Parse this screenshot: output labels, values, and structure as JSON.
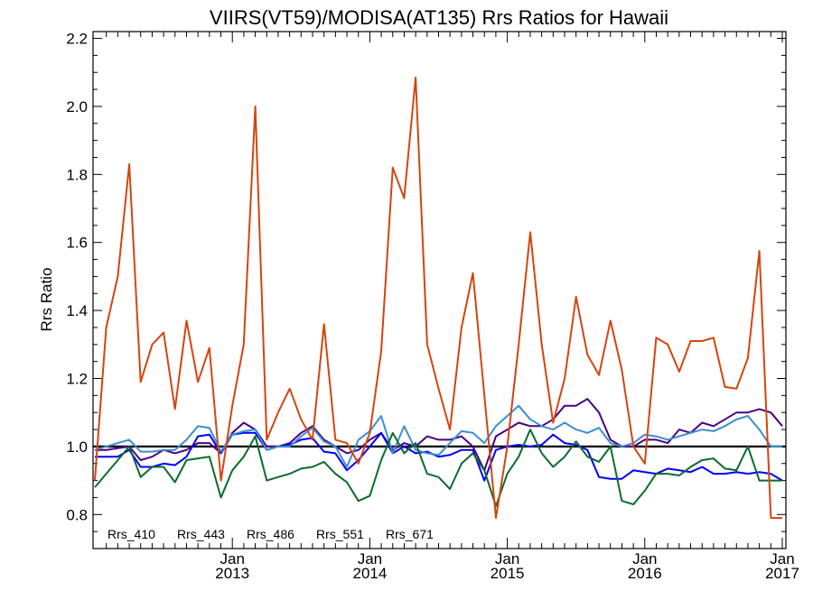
{
  "chart_data": {
    "type": "line",
    "title": "VIIRS(VT59)/MODISA(AT135)  Rrs Ratios for Hawaii",
    "xlabel": "",
    "ylabel": "Rrs Ratio",
    "xlim": [
      2012.0,
      2017.0
    ],
    "ylim": [
      0.7,
      2.22
    ],
    "yticks": [
      0.8,
      1.0,
      1.2,
      1.4,
      1.6,
      1.8,
      2.0,
      2.2
    ],
    "ytick_labels": [
      "0.8",
      "1.0",
      "1.2",
      "1.4",
      "1.6",
      "1.8",
      "2.0",
      "2.2"
    ],
    "xticks": [
      {
        "x": 2013,
        "month": "Jan",
        "year": "2013"
      },
      {
        "x": 2014,
        "month": "Jan",
        "year": "2014"
      },
      {
        "x": 2015,
        "month": "Jan",
        "year": "2015"
      },
      {
        "x": 2016,
        "month": "Jan",
        "year": "2016"
      },
      {
        "x": 2017,
        "month": "Jan",
        "year": "2017"
      }
    ],
    "reference_line": 1.0,
    "legend_placement": "bottom-left",
    "x": [
      2012.0,
      2012.083,
      2012.167,
      2012.25,
      2012.333,
      2012.417,
      2012.5,
      2012.583,
      2012.667,
      2012.75,
      2012.833,
      2012.917,
      2013.0,
      2013.083,
      2013.167,
      2013.25,
      2013.333,
      2013.417,
      2013.5,
      2013.583,
      2013.667,
      2013.75,
      2013.833,
      2013.917,
      2014.0,
      2014.083,
      2014.167,
      2014.25,
      2014.333,
      2014.417,
      2014.5,
      2014.583,
      2014.667,
      2014.75,
      2014.833,
      2014.917,
      2015.0,
      2015.083,
      2015.167,
      2015.25,
      2015.333,
      2015.417,
      2015.5,
      2015.583,
      2015.667,
      2015.75,
      2015.833,
      2015.917,
      2016.0,
      2016.083,
      2016.167,
      2016.25,
      2016.333,
      2016.417,
      2016.5,
      2016.583,
      2016.667,
      2016.75,
      2016.833,
      2016.917,
      2017.0
    ],
    "series": [
      {
        "name": "Rrs_410",
        "color": "#4b0082",
        "values": [
          0.99,
          0.99,
          0.995,
          1.0,
          0.96,
          0.97,
          0.99,
          0.98,
          0.99,
          1.01,
          1.01,
          0.98,
          1.04,
          1.07,
          1.05,
          1.0,
          1.0,
          1.01,
          1.04,
          1.06,
          1.02,
          1.0,
          0.98,
          0.99,
          1.02,
          1.04,
          0.99,
          1.01,
          1.0,
          1.03,
          1.02,
          1.02,
          1.03,
          1.0,
          0.93,
          1.03,
          1.05,
          1.07,
          1.06,
          1.06,
          1.08,
          1.12,
          1.12,
          1.14,
          1.1,
          1.02,
          1.0,
          1.0,
          1.02,
          1.02,
          1.01,
          1.05,
          1.04,
          1.07,
          1.06,
          1.08,
          1.1,
          1.1,
          1.11,
          1.1,
          1.06
        ]
      },
      {
        "name": "Rrs_443",
        "color": "#0000ff",
        "values": [
          0.97,
          0.97,
          0.97,
          0.99,
          0.94,
          0.94,
          0.95,
          0.945,
          0.97,
          1.03,
          1.035,
          0.98,
          1.035,
          1.04,
          1.04,
          0.99,
          1.0,
          1.005,
          1.02,
          1.025,
          0.985,
          0.98,
          0.93,
          0.96,
          1.0,
          1.04,
          0.98,
          1.0,
          0.98,
          0.985,
          0.97,
          0.975,
          0.99,
          0.99,
          0.9,
          0.99,
          1.0,
          1.005,
          1.0,
          1.005,
          1.035,
          1.01,
          1.005,
          0.99,
          0.91,
          0.905,
          0.905,
          0.93,
          0.925,
          0.92,
          0.935,
          0.93,
          0.925,
          0.94,
          0.92,
          0.92,
          0.925,
          0.92,
          0.925,
          0.92,
          0.9
        ]
      },
      {
        "name": "Rrs_486",
        "color": "#3b8fcf",
        "values": [
          0.99,
          1.0,
          1.01,
          1.02,
          0.985,
          0.985,
          0.99,
          0.99,
          1.02,
          1.06,
          1.055,
          0.985,
          1.035,
          1.045,
          1.05,
          0.99,
          1.0,
          1.0,
          1.03,
          1.055,
          1.015,
          1.0,
          0.94,
          1.02,
          1.045,
          1.09,
          0.98,
          1.06,
          0.99,
          0.98,
          0.975,
          1.01,
          1.045,
          1.04,
          1.01,
          1.06,
          1.09,
          1.12,
          1.08,
          1.06,
          1.05,
          1.07,
          1.05,
          1.04,
          1.055,
          1.01,
          1.0,
          1.01,
          1.035,
          1.03,
          1.02,
          1.03,
          1.04,
          1.05,
          1.045,
          1.06,
          1.08,
          1.09,
          1.05,
          1.0,
          1.0
        ]
      },
      {
        "name": "Rrs_551",
        "color": "#0b6b2e",
        "values": [
          0.88,
          0.92,
          0.96,
          1.0,
          0.91,
          0.94,
          0.94,
          0.895,
          0.96,
          0.965,
          0.97,
          0.85,
          0.93,
          0.97,
          1.03,
          0.9,
          0.91,
          0.92,
          0.935,
          0.94,
          0.955,
          0.92,
          0.895,
          0.84,
          0.855,
          0.96,
          1.04,
          0.98,
          1.01,
          0.92,
          0.91,
          0.875,
          0.95,
          0.98,
          0.93,
          0.825,
          0.92,
          0.97,
          1.05,
          0.98,
          0.94,
          0.97,
          1.015,
          0.97,
          0.955,
          1.0,
          0.84,
          0.83,
          0.87,
          0.92,
          0.92,
          0.915,
          0.94,
          0.96,
          0.965,
          0.935,
          0.93,
          1.0,
          0.9,
          0.9,
          0.9
        ]
      },
      {
        "name": "Rrs_671",
        "color": "#d4450f",
        "values": [
          0.9,
          1.35,
          1.5,
          1.83,
          1.19,
          1.3,
          1.335,
          1.11,
          1.37,
          1.19,
          1.29,
          0.9,
          1.12,
          1.3,
          2.0,
          1.02,
          1.1,
          1.17,
          1.08,
          1.02,
          1.36,
          1.02,
          1.01,
          0.95,
          1.04,
          1.28,
          1.82,
          1.73,
          2.085,
          1.3,
          1.17,
          1.05,
          1.35,
          1.51,
          1.15,
          0.79,
          1.0,
          1.3,
          1.63,
          1.3,
          1.07,
          1.2,
          1.44,
          1.27,
          1.21,
          1.37,
          1.225,
          1.0,
          0.95,
          1.32,
          1.3,
          1.22,
          1.31,
          1.31,
          1.32,
          1.175,
          1.17,
          1.26,
          1.575,
          0.79,
          0.79
        ]
      }
    ]
  }
}
